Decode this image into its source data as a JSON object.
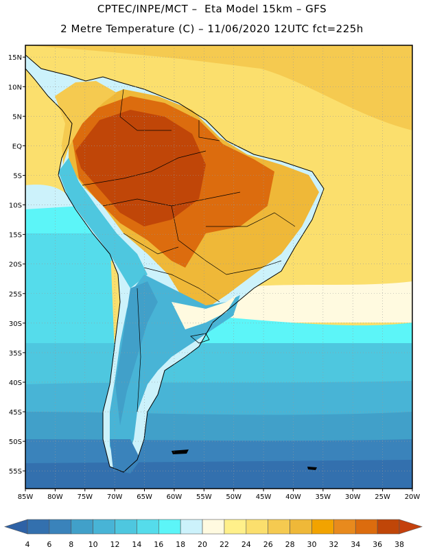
{
  "header": {
    "line1": "CPTEC/INPE/MCT –  Eta Model 15km – GFS",
    "line2": "2 Metre Temperature (C) – 11/06/2020 12UTC fct=225h"
  },
  "map": {
    "lon_range": [
      -85,
      -20
    ],
    "lat_range": [
      -58,
      17
    ],
    "lat_ticks": [
      {
        "value": 15,
        "label": "15N"
      },
      {
        "value": 10,
        "label": "10N"
      },
      {
        "value": 5,
        "label": "5N"
      },
      {
        "value": 0,
        "label": "EQ"
      },
      {
        "value": -5,
        "label": "5S"
      },
      {
        "value": -10,
        "label": "10S"
      },
      {
        "value": -15,
        "label": "15S"
      },
      {
        "value": -20,
        "label": "20S"
      },
      {
        "value": -25,
        "label": "25S"
      },
      {
        "value": -30,
        "label": "30S"
      },
      {
        "value": -35,
        "label": "35S"
      },
      {
        "value": -40,
        "label": "40S"
      },
      {
        "value": -45,
        "label": "45S"
      },
      {
        "value": -50,
        "label": "50S"
      },
      {
        "value": -55,
        "label": "55S"
      }
    ],
    "lon_ticks": [
      {
        "value": -85,
        "label": "85W"
      },
      {
        "value": -80,
        "label": "80W"
      },
      {
        "value": -75,
        "label": "75W"
      },
      {
        "value": -70,
        "label": "70W"
      },
      {
        "value": -65,
        "label": "65W"
      },
      {
        "value": -60,
        "label": "60W"
      },
      {
        "value": -55,
        "label": "55W"
      },
      {
        "value": -50,
        "label": "50W"
      },
      {
        "value": -45,
        "label": "45W"
      },
      {
        "value": -40,
        "label": "40W"
      },
      {
        "value": -35,
        "label": "35W"
      },
      {
        "value": -30,
        "label": "30W"
      },
      {
        "value": -25,
        "label": "25W"
      },
      {
        "value": -20,
        "label": "20W"
      }
    ]
  },
  "colorbar": {
    "labels": [
      "4",
      "6",
      "8",
      "10",
      "12",
      "14",
      "16",
      "18",
      "20",
      "22",
      "24",
      "26",
      "28",
      "30",
      "32",
      "34",
      "36",
      "38"
    ],
    "below_color": "#2e62a6",
    "colors": [
      "#3370ae",
      "#3a83bb",
      "#41a0c9",
      "#48b4d6",
      "#4ec7df",
      "#55dceb",
      "#5cf5f8",
      "#ccf2fb",
      "#fffae0",
      "#fff08a",
      "#fbdf6d",
      "#f5ca50",
      "#efb838",
      "#f2a300",
      "#e88a1d",
      "#dc6c0e",
      "#c04608"
    ],
    "above_color": "#c4400c"
  }
}
